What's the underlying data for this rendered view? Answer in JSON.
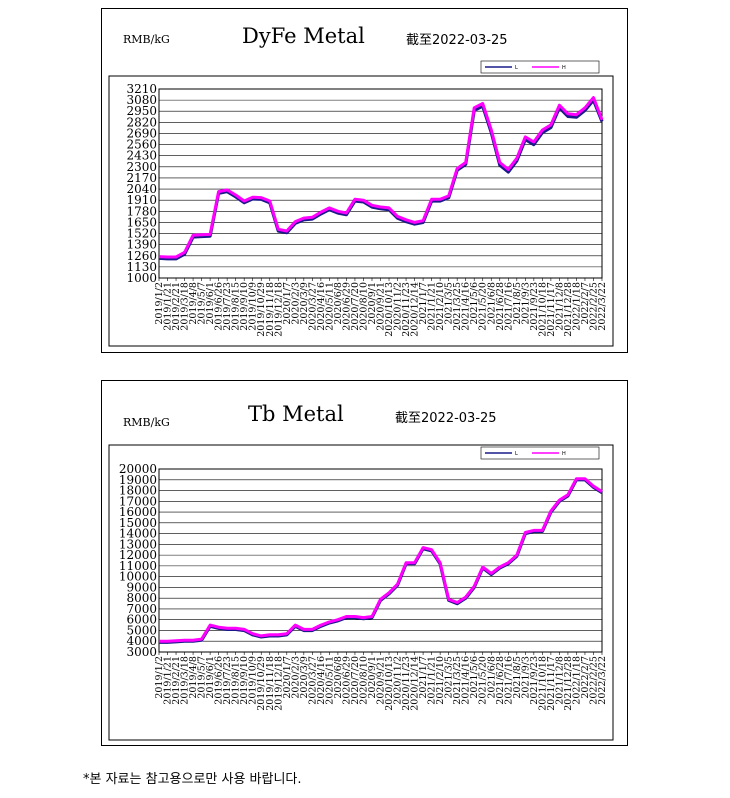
{
  "footnote": "*본 자료는 참고용으로만 사용 바랍니다.",
  "colors": {
    "series_l": "#1a1a8c",
    "series_h": "#ff00ff",
    "grid": "#000000"
  },
  "chart_data": [
    {
      "type": "line",
      "title": "DyFe Metal",
      "unit_label": "RMB/kG",
      "as_of": "截至2022-03-25",
      "ylim": [
        1000,
        3210
      ],
      "yticks": [
        1000,
        1130,
        1260,
        1390,
        1520,
        1650,
        1780,
        1910,
        2040,
        2170,
        2300,
        2430,
        2560,
        2690,
        2820,
        2950,
        3080,
        3210
      ],
      "grid": true,
      "legend_position": "top-right",
      "x_tick_labels": [
        "2019/1/2",
        "2019/1/21",
        "2019/2/21",
        "2019/3/18",
        "2019/4/8",
        "2019/5/7",
        "2019/6/1",
        "2019/6/26",
        "2019/7/23",
        "2019/8/15",
        "2019/9/10",
        "2019/10/9",
        "2019/10/29",
        "2019/11/18",
        "2019/12/18",
        "2020/1/7",
        "2020/2/3",
        "2020/3/9",
        "2020/3/27",
        "2020/4/16",
        "2020/5/11",
        "2020/6/8",
        "2020/6/29",
        "2020/7/20",
        "2020/8/10",
        "2020/9/1",
        "2020/9/21",
        "2020/10/13",
        "2020/11/2",
        "2020/11/23",
        "2020/12/14",
        "2021/1/7",
        "2021/1/21",
        "2021/2/10",
        "2021/3/5",
        "2021/3/25",
        "2021/4/16",
        "2021/5/6",
        "2021/5/20",
        "2021/6/8",
        "2021/6/28",
        "2021/7/16",
        "2021/8/5",
        "2021/9/3",
        "2021/9/23",
        "2021/10/18",
        "2021/11/17",
        "2021/12/8",
        "2021/12/28",
        "2022/1/18",
        "2022/2/7",
        "2022/2/25",
        "2022/3/22"
      ],
      "x": [
        0,
        4,
        8,
        12,
        16,
        20,
        24,
        28,
        32,
        36,
        40,
        44,
        48,
        52,
        56,
        60,
        64,
        68,
        72,
        76,
        80,
        84,
        88,
        92,
        96,
        100,
        104,
        108,
        112,
        116,
        120,
        124,
        128,
        132,
        136,
        140,
        144,
        148,
        152,
        156,
        160,
        164,
        168,
        172,
        176,
        180,
        184,
        188,
        192,
        196,
        200,
        204,
        208
      ],
      "series": [
        {
          "name": "L",
          "values": [
            1230,
            1225,
            1225,
            1280,
            1480,
            1485,
            1490,
            1990,
            2010,
            1950,
            1880,
            1925,
            1920,
            1880,
            1550,
            1530,
            1640,
            1680,
            1690,
            1750,
            1800,
            1760,
            1740,
            1900,
            1890,
            1830,
            1810,
            1800,
            1700,
            1660,
            1630,
            1650,
            1900,
            1900,
            1940,
            2260,
            2330,
            2960,
            3010,
            2700,
            2320,
            2240,
            2370,
            2620,
            2560,
            2700,
            2760,
            2990,
            2890,
            2880,
            2960,
            3080,
            2830
          ]
        },
        {
          "name": "H",
          "values": [
            1250,
            1245,
            1245,
            1300,
            1500,
            1505,
            1510,
            2010,
            2030,
            1970,
            1900,
            1945,
            1940,
            1900,
            1570,
            1550,
            1660,
            1700,
            1710,
            1770,
            1820,
            1780,
            1760,
            1920,
            1910,
            1850,
            1830,
            1820,
            1720,
            1680,
            1650,
            1670,
            1920,
            1920,
            1960,
            2280,
            2350,
            2990,
            3040,
            2730,
            2350,
            2270,
            2400,
            2650,
            2590,
            2730,
            2790,
            3020,
            2920,
            2910,
            2990,
            3110,
            2850
          ]
        }
      ]
    },
    {
      "type": "line",
      "title": "Tb Metal",
      "unit_label": "RMB/kG",
      "as_of": "截至2022-03-25",
      "ylim": [
        3000,
        20000
      ],
      "yticks": [
        3000,
        4000,
        5000,
        6000,
        7000,
        8000,
        9000,
        10000,
        11000,
        12000,
        13000,
        14000,
        15000,
        16000,
        17000,
        18000,
        19000,
        20000
      ],
      "grid": true,
      "legend_position": "top-right",
      "x_tick_labels": [
        "2019/1/2",
        "2019/1/21",
        "2019/2/21",
        "2019/3/18",
        "2019/4/8",
        "2019/5/7",
        "2019/6/1",
        "2019/6/26",
        "2019/7/23",
        "2019/8/15",
        "2019/9/10",
        "2019/10/9",
        "2019/10/29",
        "2019/11/18",
        "2019/12/18",
        "2020/1/7",
        "2020/2/3",
        "2020/3/9",
        "2020/3/27",
        "2020/4/16",
        "2020/5/11",
        "2020/6/8",
        "2020/6/29",
        "2020/7/20",
        "2020/8/10",
        "2020/9/1",
        "2020/9/21",
        "2020/10/13",
        "2020/11/2",
        "2020/11/23",
        "2020/12/14",
        "2021/1/7",
        "2021/1/21",
        "2021/2/10",
        "2021/3/5",
        "2021/3/25",
        "2021/4/16",
        "2021/5/6",
        "2021/5/20",
        "2021/6/8",
        "2021/6/28",
        "2021/7/16",
        "2021/8/5",
        "2021/9/3",
        "2021/9/23",
        "2021/10/18",
        "2021/11/17",
        "2021/12/8",
        "2021/12/28",
        "2022/1/18",
        "2022/2/7",
        "2022/2/25",
        "2022/3/22"
      ],
      "x": [
        0,
        4,
        8,
        12,
        16,
        20,
        24,
        28,
        32,
        36,
        40,
        44,
        48,
        52,
        56,
        60,
        64,
        68,
        72,
        76,
        80,
        84,
        88,
        92,
        96,
        100,
        104,
        108,
        112,
        116,
        120,
        124,
        128,
        132,
        136,
        140,
        144,
        148,
        152,
        156,
        160,
        164,
        168,
        172,
        176,
        180,
        184,
        188,
        192,
        196,
        200,
        204,
        208
      ],
      "series": [
        {
          "name": "L",
          "values": [
            3900,
            3900,
            3950,
            4000,
            4000,
            4100,
            5400,
            5200,
            5100,
            5100,
            5000,
            4600,
            4400,
            4500,
            4500,
            4600,
            5400,
            5000,
            5000,
            5400,
            5700,
            5900,
            6200,
            6200,
            6100,
            6200,
            7800,
            8400,
            9200,
            11200,
            11200,
            12600,
            12400,
            11200,
            7800,
            7500,
            8000,
            9000,
            10800,
            10200,
            10800,
            11200,
            11900,
            14000,
            14200,
            14200,
            16000,
            17000,
            17500,
            19000,
            19000,
            18300,
            17800
          ]
        },
        {
          "name": "H",
          "values": [
            4000,
            4000,
            4050,
            4100,
            4100,
            4200,
            5500,
            5300,
            5200,
            5200,
            5100,
            4700,
            4500,
            4600,
            4600,
            4700,
            5500,
            5100,
            5100,
            5500,
            5800,
            6000,
            6300,
            6300,
            6200,
            6300,
            7900,
            8500,
            9300,
            11300,
            11300,
            12700,
            12500,
            11300,
            7900,
            7600,
            8100,
            9100,
            10900,
            10300,
            10900,
            11300,
            12000,
            14100,
            14300,
            14300,
            16100,
            17100,
            17600,
            19100,
            19100,
            18400,
            17900
          ]
        }
      ]
    }
  ]
}
